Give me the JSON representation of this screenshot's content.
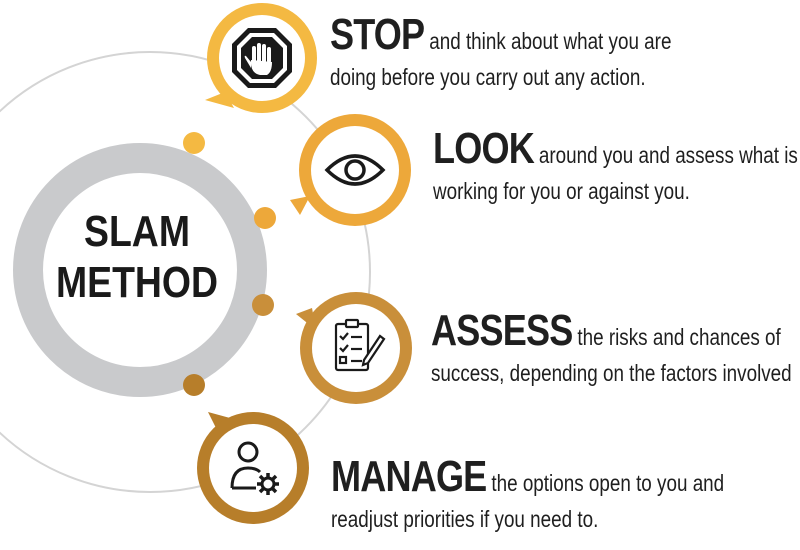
{
  "center": {
    "line1": "SLAM",
    "line2": "METHOD"
  },
  "steps": [
    {
      "keyword": "STOP",
      "rest": "and think about what you are",
      "line2": "doing before you carry out any action.",
      "icon": "stop-hand-icon",
      "color": "#F4B942"
    },
    {
      "keyword": "LOOK",
      "rest": "around you and assess what is",
      "line2": "working for you or against you.",
      "icon": "eye-icon",
      "color": "#EDA83A"
    },
    {
      "keyword": "ASSESS",
      "rest": "the risks and chances of",
      "line2": "success, depending on the factors involved",
      "icon": "checklist-icon",
      "color": "#C98F3A"
    },
    {
      "keyword": "MANAGE",
      "rest": "the options open to you and",
      "line2": "readjust priorities if you need to.",
      "icon": "user-gear-icon",
      "color": "#B77E2A"
    }
  ],
  "colors": {
    "ring": "#C9CACC",
    "orbit": "#D4D4D4",
    "text": "#1F1F1F"
  }
}
